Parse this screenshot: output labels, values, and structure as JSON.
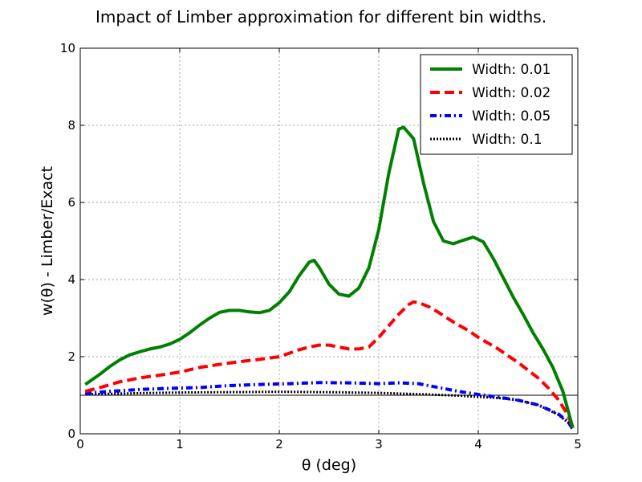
{
  "chart_data": {
    "type": "line",
    "title": "Impact of Limber approximation for different bin widths.",
    "xlabel": "θ (deg)",
    "ylabel": "w(θ) - Limber/Exact",
    "xlim": [
      0,
      5
    ],
    "ylim": [
      0,
      10
    ],
    "xticks": [
      "0",
      "1",
      "2",
      "3",
      "4",
      "5"
    ],
    "yticks": [
      "0",
      "2",
      "4",
      "6",
      "8",
      "10"
    ],
    "grid": true,
    "legend_position": "top-right",
    "reference_line": 1,
    "series": [
      {
        "name": "Width: 0.01",
        "color": "#008000",
        "style": "solid",
        "x": [
          0.05,
          0.2,
          0.3,
          0.4,
          0.5,
          0.6,
          0.7,
          0.8,
          0.9,
          1.0,
          1.1,
          1.2,
          1.3,
          1.4,
          1.5,
          1.6,
          1.7,
          1.8,
          1.9,
          2.0,
          2.1,
          2.2,
          2.3,
          2.35,
          2.4,
          2.5,
          2.6,
          2.7,
          2.8,
          2.9,
          3.0,
          3.1,
          3.2,
          3.25,
          3.35,
          3.45,
          3.55,
          3.65,
          3.75,
          3.85,
          3.95,
          4.05,
          4.15,
          4.25,
          4.35,
          4.45,
          4.55,
          4.65,
          4.75,
          4.85,
          4.95
        ],
        "values": [
          1.28,
          1.55,
          1.75,
          1.92,
          2.05,
          2.13,
          2.2,
          2.25,
          2.33,
          2.45,
          2.62,
          2.82,
          3.0,
          3.15,
          3.2,
          3.2,
          3.16,
          3.14,
          3.2,
          3.4,
          3.68,
          4.1,
          4.45,
          4.5,
          4.32,
          3.88,
          3.62,
          3.57,
          3.78,
          4.3,
          5.3,
          6.75,
          7.9,
          7.95,
          7.65,
          6.5,
          5.5,
          5.0,
          4.93,
          5.02,
          5.1,
          4.98,
          4.55,
          4.05,
          3.55,
          3.1,
          2.62,
          2.2,
          1.72,
          1.1,
          0.15
        ]
      },
      {
        "name": "Width: 0.02",
        "color": "#ff0000",
        "style": "dashed",
        "x": [
          0.05,
          0.2,
          0.4,
          0.6,
          0.8,
          1.0,
          1.2,
          1.4,
          1.6,
          1.8,
          2.0,
          2.2,
          2.3,
          2.4,
          2.5,
          2.6,
          2.7,
          2.8,
          2.9,
          3.0,
          3.1,
          3.2,
          3.3,
          3.35,
          3.4,
          3.5,
          3.6,
          3.7,
          3.8,
          3.9,
          4.0,
          4.1,
          4.2,
          4.3,
          4.4,
          4.5,
          4.6,
          4.7,
          4.8,
          4.9,
          4.95
        ],
        "values": [
          1.1,
          1.2,
          1.35,
          1.45,
          1.52,
          1.6,
          1.72,
          1.8,
          1.87,
          1.93,
          2.0,
          2.18,
          2.25,
          2.3,
          2.3,
          2.25,
          2.2,
          2.2,
          2.25,
          2.5,
          2.8,
          3.1,
          3.35,
          3.42,
          3.4,
          3.3,
          3.15,
          2.98,
          2.82,
          2.68,
          2.5,
          2.35,
          2.2,
          2.02,
          1.85,
          1.65,
          1.45,
          1.2,
          0.9,
          0.5,
          0.15
        ]
      },
      {
        "name": "Width: 0.05",
        "color": "#0000ff",
        "style": "dashdot",
        "x": [
          0.05,
          0.3,
          0.6,
          0.9,
          1.2,
          1.5,
          1.8,
          2.1,
          2.4,
          2.7,
          3.0,
          3.2,
          3.4,
          3.6,
          3.8,
          4.0,
          4.2,
          4.4,
          4.6,
          4.8,
          4.9,
          4.95
        ],
        "values": [
          1.05,
          1.1,
          1.15,
          1.18,
          1.2,
          1.25,
          1.28,
          1.3,
          1.33,
          1.32,
          1.3,
          1.32,
          1.3,
          1.2,
          1.1,
          1.02,
          0.95,
          0.87,
          0.75,
          0.52,
          0.32,
          0.12
        ]
      },
      {
        "name": "Width: 0.1",
        "color": "#000000",
        "style": "dotted",
        "x": [
          0.05,
          0.5,
          1.0,
          1.5,
          2.0,
          2.5,
          3.0,
          3.4,
          3.8,
          4.0,
          4.2,
          4.4,
          4.6,
          4.8,
          4.9,
          4.95
        ],
        "values": [
          1.02,
          1.05,
          1.07,
          1.08,
          1.09,
          1.08,
          1.06,
          1.03,
          0.99,
          0.96,
          0.93,
          0.87,
          0.75,
          0.5,
          0.3,
          0.1
        ]
      }
    ]
  }
}
